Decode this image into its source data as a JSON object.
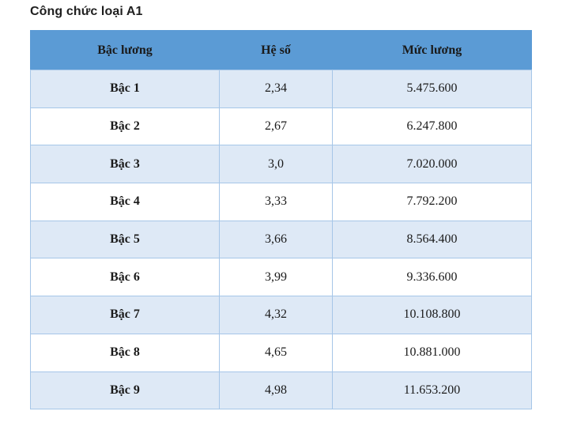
{
  "page": {
    "title": "Công chức loại A1"
  },
  "table": {
    "columns": {
      "bac": "Bậc lương",
      "he_so": "Hệ số",
      "muc_luong": "Mức lương"
    },
    "rows": [
      {
        "bac": "Bậc 1",
        "he_so": "2,34",
        "muc_luong": "5.475.600"
      },
      {
        "bac": "Bậc 2",
        "he_so": "2,67",
        "muc_luong": "6.247.800"
      },
      {
        "bac": "Bậc 3",
        "he_so": "3,0",
        "muc_luong": "7.020.000"
      },
      {
        "bac": "Bậc 4",
        "he_so": "3,33",
        "muc_luong": "7.792.200"
      },
      {
        "bac": "Bậc 5",
        "he_so": "3,66",
        "muc_luong": "8.564.400"
      },
      {
        "bac": "Bậc 6",
        "he_so": "3,99",
        "muc_luong": "9.336.600"
      },
      {
        "bac": "Bậc 7",
        "he_so": "4,32",
        "muc_luong": "10.108.800"
      },
      {
        "bac": "Bậc 8",
        "he_so": "4,65",
        "muc_luong": "10.881.000"
      },
      {
        "bac": "Bậc 9",
        "he_so": "4,98",
        "muc_luong": "11.653.200"
      }
    ]
  },
  "colors": {
    "header_bg": "#5b9bd5",
    "row_alt_bg": "#dee9f6",
    "border": "#a6c6e8",
    "text": "#1a1a1a"
  }
}
